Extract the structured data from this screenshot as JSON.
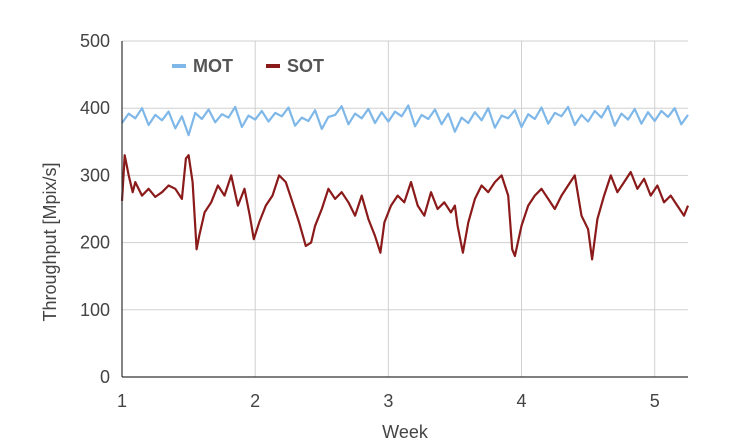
{
  "chart_data": {
    "type": "line",
    "title": "",
    "xlabel": "Week",
    "ylabel": "Throughput [Mpix/s]",
    "xlim": [
      1,
      5.25
    ],
    "ylim": [
      0,
      500
    ],
    "x_ticks": [
      1,
      2,
      3,
      4,
      5
    ],
    "x_tick_labels": [
      "1",
      "2",
      "3",
      "4",
      "5"
    ],
    "y_ticks": [
      0,
      100,
      200,
      300,
      400,
      500
    ],
    "y_tick_labels": [
      "0",
      "100",
      "200",
      "300",
      "400",
      "500"
    ],
    "grid": true,
    "legend_placement": "top-left",
    "series": [
      {
        "name": "MOT",
        "color": "#7fb8e8",
        "x": [
          1.0,
          1.05,
          1.1,
          1.15,
          1.2,
          1.25,
          1.3,
          1.35,
          1.4,
          1.45,
          1.5,
          1.55,
          1.6,
          1.65,
          1.7,
          1.75,
          1.8,
          1.85,
          1.9,
          1.95,
          2.0,
          2.05,
          2.1,
          2.15,
          2.2,
          2.25,
          2.3,
          2.35,
          2.4,
          2.45,
          2.5,
          2.55,
          2.6,
          2.65,
          2.7,
          2.75,
          2.8,
          2.85,
          2.9,
          2.95,
          3.0,
          3.05,
          3.1,
          3.15,
          3.2,
          3.25,
          3.3,
          3.35,
          3.4,
          3.45,
          3.5,
          3.55,
          3.6,
          3.65,
          3.7,
          3.75,
          3.8,
          3.85,
          3.9,
          3.95,
          4.0,
          4.05,
          4.1,
          4.15,
          4.2,
          4.25,
          4.3,
          4.35,
          4.4,
          4.45,
          4.5,
          4.55,
          4.6,
          4.65,
          4.7,
          4.75,
          4.8,
          4.85,
          4.9,
          4.95,
          5.0,
          5.05,
          5.1,
          5.15,
          5.2,
          5.25
        ],
        "values": [
          378,
          392,
          385,
          400,
          375,
          390,
          382,
          395,
          370,
          388,
          360,
          393,
          384,
          398,
          379,
          391,
          386,
          402,
          372,
          389,
          383,
          396,
          380,
          393,
          388,
          401,
          374,
          386,
          381,
          397,
          369,
          387,
          390,
          403,
          376,
          392,
          385,
          399,
          378,
          394,
          380,
          395,
          388,
          404,
          373,
          390,
          384,
          398,
          376,
          392,
          365,
          386,
          378,
          394,
          382,
          400,
          371,
          389,
          385,
          397,
          372,
          391,
          384,
          401,
          377,
          393,
          388,
          402,
          375,
          390,
          380,
          396,
          386,
          403,
          374,
          392,
          383,
          399,
          377,
          394,
          381,
          396,
          387,
          400,
          376,
          390
        ]
      },
      {
        "name": "SOT",
        "color": "#8b1a1a",
        "x": [
          1.0,
          1.02,
          1.05,
          1.08,
          1.1,
          1.15,
          1.2,
          1.25,
          1.3,
          1.35,
          1.4,
          1.45,
          1.48,
          1.5,
          1.53,
          1.56,
          1.58,
          1.62,
          1.67,
          1.72,
          1.77,
          1.82,
          1.87,
          1.92,
          1.96,
          1.99,
          2.03,
          2.08,
          2.13,
          2.18,
          2.23,
          2.28,
          2.33,
          2.38,
          2.42,
          2.45,
          2.5,
          2.55,
          2.6,
          2.65,
          2.7,
          2.75,
          2.8,
          2.85,
          2.9,
          2.94,
          2.97,
          3.02,
          3.07,
          3.12,
          3.17,
          3.22,
          3.27,
          3.32,
          3.37,
          3.42,
          3.47,
          3.5,
          3.52,
          3.56,
          3.6,
          3.65,
          3.7,
          3.75,
          3.8,
          3.85,
          3.9,
          3.93,
          3.95,
          4.0,
          4.05,
          4.1,
          4.15,
          4.2,
          4.25,
          4.3,
          4.35,
          4.4,
          4.45,
          4.5,
          4.53,
          4.57,
          4.62,
          4.67,
          4.72,
          4.77,
          4.82,
          4.87,
          4.92,
          4.97,
          5.02,
          5.07,
          5.12,
          5.17,
          5.22,
          5.25
        ],
        "values": [
          262,
          330,
          300,
          275,
          290,
          270,
          280,
          268,
          275,
          285,
          280,
          265,
          325,
          330,
          290,
          190,
          210,
          245,
          260,
          285,
          270,
          300,
          255,
          280,
          240,
          205,
          230,
          255,
          270,
          300,
          290,
          260,
          230,
          195,
          200,
          225,
          250,
          280,
          265,
          275,
          260,
          240,
          270,
          235,
          210,
          185,
          230,
          255,
          270,
          260,
          290,
          255,
          240,
          275,
          250,
          260,
          245,
          255,
          225,
          185,
          230,
          265,
          285,
          275,
          290,
          300,
          270,
          190,
          180,
          225,
          255,
          270,
          280,
          265,
          250,
          270,
          285,
          300,
          240,
          220,
          175,
          235,
          270,
          300,
          275,
          290,
          305,
          280,
          295,
          270,
          285,
          260,
          270,
          255,
          240,
          255
        ]
      }
    ]
  }
}
